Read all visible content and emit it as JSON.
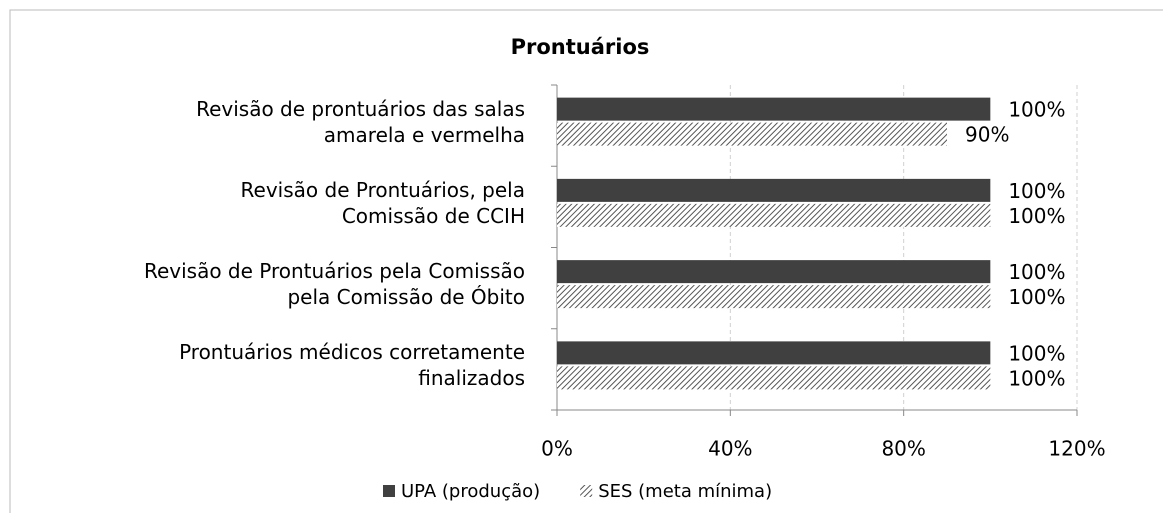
{
  "chart_data": {
    "type": "bar",
    "orientation": "horizontal",
    "title": "Prontuários",
    "categories": [
      "Revisão de prontuários das salas\namarela e vermelha",
      "Revisão de Prontuários, pela\nComissão de CCIH",
      "Revisão de Prontuários pela Comissão\npela Comissão de Óbito",
      "Prontuários médicos corretamente\nfinalizados"
    ],
    "series": [
      {
        "name": "UPA (produção)",
        "color": "#404040",
        "pattern": "solid",
        "values": [
          100,
          100,
          100,
          100
        ],
        "value_labels": [
          "100%",
          "100%",
          "100%",
          "100%"
        ]
      },
      {
        "name": "SES (meta mínima)",
        "color": "#808080",
        "pattern": "hatch",
        "values": [
          90,
          100,
          100,
          100
        ],
        "value_labels": [
          "90%",
          "100%",
          "100%",
          "100%"
        ]
      }
    ],
    "xlim": [
      0,
      120
    ],
    "xticks": [
      {
        "value": 0,
        "label": "0%"
      },
      {
        "value": 40,
        "label": "40%"
      },
      {
        "value": 80,
        "label": "80%"
      },
      {
        "value": 120,
        "label": "120%"
      }
    ],
    "grid": true,
    "legend": "bottom"
  }
}
